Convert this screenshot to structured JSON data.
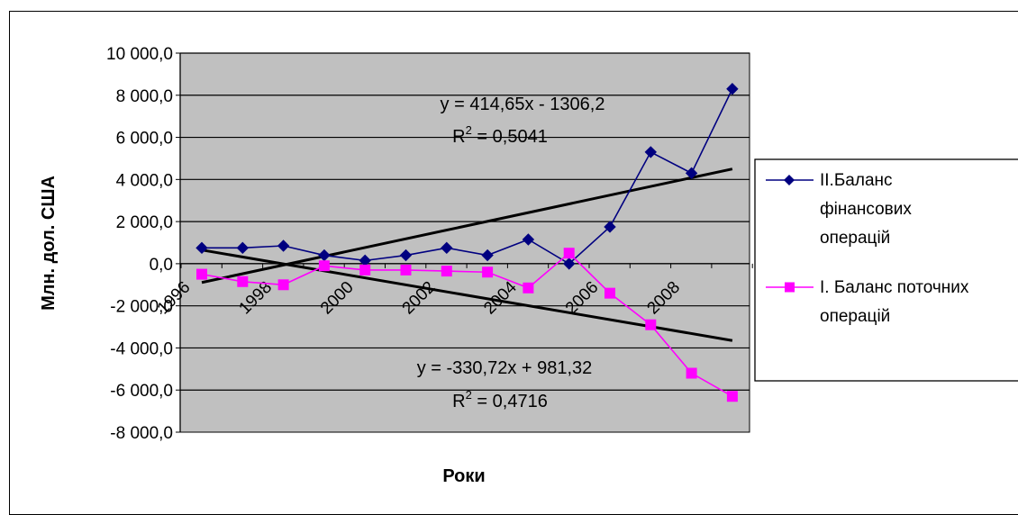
{
  "chart_data": {
    "type": "line",
    "xlabel": "Роки",
    "ylabel": "Млн. дол. США",
    "ylim": [
      -8000,
      10000
    ],
    "y_ticks": [
      "10 000,0",
      "8 000,0",
      "6 000,0",
      "4 000,0",
      "2 000,0",
      "0,0",
      "-2 000,0",
      "-4 000,0",
      "-6 000,0",
      "-8 000,0"
    ],
    "y_tick_values": [
      10000,
      8000,
      6000,
      4000,
      2000,
      0,
      -2000,
      -4000,
      -6000,
      -8000
    ],
    "x_ticks": [
      "1996",
      "1998",
      "2000",
      "2002",
      "2004",
      "2006",
      "2008"
    ],
    "x": [
      1996,
      1997,
      1998,
      1999,
      2000,
      2001,
      2002,
      2003,
      2004,
      2005,
      2006,
      2007,
      2008,
      2009
    ],
    "grid": true,
    "plot_background": "#c0c0c0",
    "legend_placement": "right",
    "series": [
      {
        "name_lines": [
          "II.Баланс",
          "фінансових",
          "операцій"
        ],
        "color": "#000080",
        "marker": "diamond",
        "values": [
          750,
          750,
          850,
          400,
          150,
          400,
          750,
          400,
          1150,
          0,
          1750,
          5300,
          4300,
          8300
        ],
        "trendline": {
          "equation": "y = 414,65x - 1306,2",
          "r2_prefix": "R",
          "r2_sup": "2",
          "r2_value": " = 0,5041",
          "slope": 414.65,
          "intercept": -1306.2,
          "color": "#000000"
        }
      },
      {
        "name_lines": [
          "I. Баланс поточних",
          "операцій"
        ],
        "color": "#ff00ff",
        "marker": "square",
        "values": [
          -500,
          -850,
          -1000,
          -100,
          -300,
          -300,
          -350,
          -400,
          -1150,
          500,
          -1400,
          -2900,
          -5200,
          -6300
        ],
        "trendline": {
          "equation": "y = -330,72x + 981,32",
          "r2_prefix": "R",
          "r2_sup": "2",
          "r2_value": " = 0,4716",
          "slope": -330.72,
          "intercept": 981.32,
          "color": "#000000"
        }
      }
    ]
  }
}
